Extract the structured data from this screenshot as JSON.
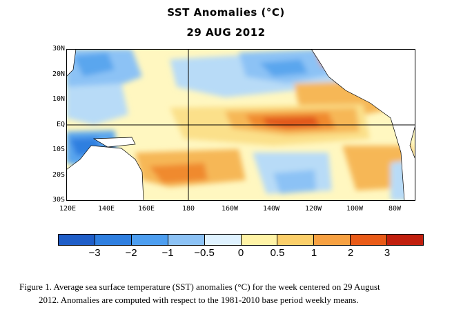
{
  "title_line1": "SST Anomalies (°C)",
  "title_line2": "29 AUG 2012",
  "latitude_labels": [
    "30N",
    "20N",
    "10N",
    "EQ",
    "10S",
    "20S",
    "30S"
  ],
  "longitude_labels": [
    "120E",
    "140E",
    "160E",
    "180",
    "160W",
    "140W",
    "120W",
    "100W",
    "80W"
  ],
  "colorbar": {
    "labels": [
      "−3",
      "−2",
      "−1",
      "−0.5",
      "0",
      "0.5",
      "1",
      "2",
      "3"
    ],
    "colors": [
      "#1f5ec8",
      "#2f7fe0",
      "#4d9ef0",
      "#8cc2f5",
      "#dff2ff",
      "#fff3a6",
      "#fbcf6a",
      "#f7a142",
      "#e95b18",
      "#c11f0e"
    ]
  },
  "map_colors": {
    "land": "#ffffff",
    "neutral": "#fff7c0",
    "light_warm": "#fbe08a",
    "warm": "#f6b757",
    "orange": "#f08a2e",
    "hot": "#e1571a",
    "very_hot": "#c92d10",
    "light_cool": "#b8dbf7",
    "cool": "#8cc2f5",
    "blue": "#5aa6ee",
    "dark_blue": "#2f7fe0"
  },
  "caption": {
    "line1": "Figure 1. Average sea surface temperature (SST) anomalies (°C) for the week centered on 29 August",
    "line2": "2012. Anomalies are computed with respect to the 1981-2010 base period weekly means."
  }
}
